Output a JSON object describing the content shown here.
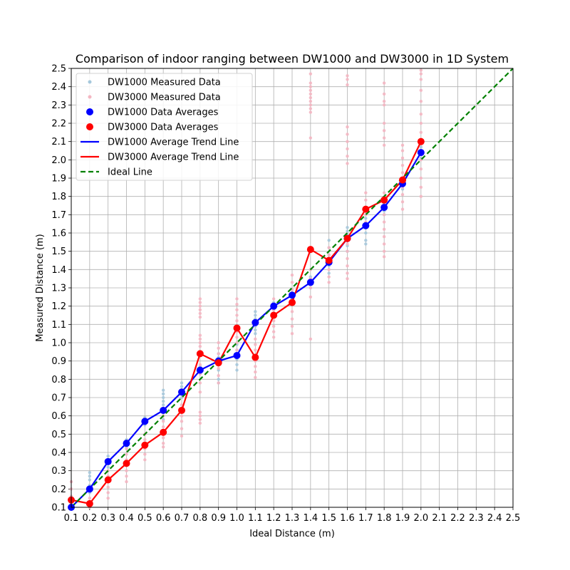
{
  "chart_data": {
    "type": "line",
    "title": "Comparison of indoor ranging between DW1000 and DW3000 in 1D System",
    "xlabel": "Ideal Distance (m)",
    "ylabel": "Measured Distance (m)",
    "xlim": [
      0.1,
      2.5
    ],
    "ylim": [
      0.1,
      2.5
    ],
    "xtick_labels": [
      "0.1",
      "0.2",
      "0.3",
      "0.4",
      "0.5",
      "0.6",
      "0.7",
      "0.8",
      "0.9",
      "1.0",
      "1.1",
      "1.2",
      "1.3",
      "1.4",
      "1.5",
      "1.6",
      "1.7",
      "1.8",
      "1.9",
      "2.0",
      "2.1",
      "2.2",
      "2.3",
      "2.4",
      "2.5"
    ],
    "ytick_labels": [
      "0.1",
      "0.2",
      "0.3",
      "0.4",
      "0.5",
      "0.6",
      "0.7",
      "0.8",
      "0.9",
      "1.0",
      "1.1",
      "1.2",
      "1.3",
      "1.4",
      "1.5",
      "1.6",
      "1.7",
      "1.8",
      "1.9",
      "2.0",
      "2.1",
      "2.2",
      "2.3",
      "2.4",
      "2.5"
    ],
    "grid": true,
    "legend_position": "top-left",
    "legend": [
      {
        "label": "DW1000 Measured Data",
        "kind": "small-dot",
        "color": "#a6c8dc"
      },
      {
        "label": "DW3000 Measured Data",
        "kind": "small-dot",
        "color": "#f4b6c2"
      },
      {
        "label": "DW1000 Data Averages",
        "kind": "big-dot",
        "color": "#0000ff"
      },
      {
        "label": "DW3000 Data Averages",
        "kind": "big-dot",
        "color": "#ff0000"
      },
      {
        "label": "DW1000 Average Trend Line",
        "kind": "line",
        "color": "#0000ff"
      },
      {
        "label": "DW3000 Average Trend Line",
        "kind": "line",
        "color": "#ff0000"
      },
      {
        "label": "Ideal Line",
        "kind": "dashed",
        "color": "#008000"
      }
    ],
    "series": [
      {
        "name": "DW1000 Data Averages",
        "color": "#0000ff",
        "x": [
          0.1,
          0.2,
          0.3,
          0.4,
          0.5,
          0.6,
          0.7,
          0.8,
          0.9,
          1.0,
          1.1,
          1.2,
          1.3,
          1.4,
          1.5,
          1.6,
          1.7,
          1.8,
          1.9,
          2.0
        ],
        "y": [
          0.1,
          0.2,
          0.35,
          0.45,
          0.57,
          0.63,
          0.73,
          0.85,
          0.9,
          0.93,
          1.11,
          1.2,
          1.26,
          1.33,
          1.44,
          1.57,
          1.64,
          1.74,
          1.87,
          2.04
        ]
      },
      {
        "name": "DW3000 Data Averages",
        "color": "#ff0000",
        "x": [
          0.1,
          0.2,
          0.3,
          0.4,
          0.5,
          0.6,
          0.7,
          0.8,
          0.9,
          1.0,
          1.1,
          1.2,
          1.3,
          1.4,
          1.5,
          1.6,
          1.7,
          1.8,
          1.9,
          2.0
        ],
        "y": [
          0.14,
          0.12,
          0.25,
          0.34,
          0.44,
          0.51,
          0.63,
          0.94,
          0.89,
          1.08,
          0.92,
          1.15,
          1.22,
          1.51,
          1.45,
          1.57,
          1.73,
          1.78,
          1.89,
          2.1
        ]
      },
      {
        "name": "Ideal Line",
        "color": "#008000",
        "x": [
          0.1,
          2.5
        ],
        "y": [
          0.1,
          2.5
        ]
      }
    ],
    "measured_data": [
      {
        "name": "DW1000 Measured Data",
        "color": "#a6c8dc",
        "points": [
          {
            "x": 0.1,
            "y": [
              0.09,
              0.1,
              0.11,
              0.12
            ]
          },
          {
            "x": 0.2,
            "y": [
              0.18,
              0.2,
              0.22,
              0.25,
              0.27,
              0.29
            ]
          },
          {
            "x": 0.3,
            "y": [
              0.32,
              0.34,
              0.35,
              0.36,
              0.38
            ]
          },
          {
            "x": 0.4,
            "y": [
              0.43,
              0.44,
              0.45,
              0.46,
              0.47
            ]
          },
          {
            "x": 0.5,
            "y": [
              0.55,
              0.56,
              0.57,
              0.58,
              0.59
            ]
          },
          {
            "x": 0.6,
            "y": [
              0.58,
              0.6,
              0.62,
              0.64,
              0.66,
              0.68,
              0.7,
              0.72,
              0.74
            ]
          },
          {
            "x": 0.7,
            "y": [
              0.7,
              0.72,
              0.73,
              0.74,
              0.76,
              0.78
            ]
          },
          {
            "x": 0.8,
            "y": [
              0.83,
              0.84,
              0.85,
              0.86,
              0.87
            ]
          },
          {
            "x": 0.9,
            "y": [
              0.78,
              0.8,
              0.85,
              0.88,
              0.9,
              0.92,
              0.94
            ]
          },
          {
            "x": 1.0,
            "y": [
              0.85,
              0.88,
              0.91,
              0.93,
              0.96,
              0.99
            ]
          },
          {
            "x": 1.1,
            "y": [
              1.05,
              1.07,
              1.09,
              1.11,
              1.13,
              1.15,
              1.17
            ]
          },
          {
            "x": 1.2,
            "y": [
              1.18,
              1.19,
              1.2,
              1.21,
              1.22
            ]
          },
          {
            "x": 1.3,
            "y": [
              1.23,
              1.25,
              1.26,
              1.27,
              1.29
            ]
          },
          {
            "x": 1.4,
            "y": [
              1.3,
              1.32,
              1.33,
              1.34,
              1.36
            ]
          },
          {
            "x": 1.5,
            "y": [
              1.38,
              1.42,
              1.44,
              1.48,
              1.52,
              1.56
            ]
          },
          {
            "x": 1.6,
            "y": [
              1.5,
              1.53,
              1.57,
              1.59,
              1.61,
              1.63
            ]
          },
          {
            "x": 1.7,
            "y": [
              1.54,
              1.56,
              1.6,
              1.64,
              1.68
            ]
          },
          {
            "x": 1.8,
            "y": [
              1.7,
              1.72,
              1.74,
              1.76,
              1.78
            ]
          },
          {
            "x": 1.9,
            "y": [
              1.84,
              1.86,
              1.87,
              1.88,
              1.9
            ]
          },
          {
            "x": 2.0,
            "y": [
              2.01,
              2.03,
              2.04,
              2.05,
              2.07
            ]
          }
        ]
      },
      {
        "name": "DW3000 Measured Data",
        "color": "#f4b6c2",
        "points": [
          {
            "x": 0.1,
            "y": [
              0.1,
              0.12,
              0.14,
              0.16,
              0.2,
              0.24
            ]
          },
          {
            "x": 0.2,
            "y": [
              0.1,
              0.11,
              0.12,
              0.13,
              0.15
            ]
          },
          {
            "x": 0.3,
            "y": [
              0.15,
              0.18,
              0.21,
              0.24,
              0.27,
              0.3
            ]
          },
          {
            "x": 0.4,
            "y": [
              0.24,
              0.27,
              0.3,
              0.33,
              0.36,
              0.39,
              0.42
            ]
          },
          {
            "x": 0.5,
            "y": [
              0.36,
              0.39,
              0.42,
              0.44,
              0.47,
              0.5
            ]
          },
          {
            "x": 0.6,
            "y": [
              0.43,
              0.45,
              0.48,
              0.51,
              0.54,
              0.57,
              0.6
            ]
          },
          {
            "x": 0.7,
            "y": [
              0.49,
              0.53,
              0.57,
              0.6,
              0.63,
              0.66
            ]
          },
          {
            "x": 0.8,
            "y": [
              0.56,
              0.58,
              0.6,
              0.62,
              0.73,
              0.78,
              0.83,
              0.88,
              0.98,
              1.0,
              1.02,
              1.04,
              1.14,
              1.16,
              1.18,
              1.2,
              1.22,
              1.24
            ]
          },
          {
            "x": 0.9,
            "y": [
              0.78,
              0.82,
              0.86,
              0.9,
              0.94,
              0.97,
              1.0
            ]
          },
          {
            "x": 1.0,
            "y": [
              0.96,
              1.0,
              1.03,
              1.06,
              1.09,
              1.12,
              1.15,
              1.18,
              1.21,
              1.24
            ]
          },
          {
            "x": 1.1,
            "y": [
              0.81,
              0.84,
              0.87,
              0.9,
              0.93,
              0.96,
              0.99,
              1.02
            ]
          },
          {
            "x": 1.2,
            "y": [
              1.03,
              1.06,
              1.09,
              1.12,
              1.15,
              1.18,
              1.21,
              1.24
            ]
          },
          {
            "x": 1.3,
            "y": [
              1.05,
              1.09,
              1.13,
              1.17,
              1.21,
              1.25,
              1.29,
              1.33,
              1.37
            ]
          },
          {
            "x": 1.4,
            "y": [
              1.02,
              1.25,
              1.3,
              1.35,
              1.4,
              2.12,
              2.26,
              2.28,
              2.3,
              2.32,
              2.34,
              2.36,
              2.38,
              2.4,
              2.42,
              2.47
            ]
          },
          {
            "x": 1.5,
            "y": [
              1.33,
              1.36,
              1.4,
              1.44,
              1.48,
              1.52
            ]
          },
          {
            "x": 1.6,
            "y": [
              1.35,
              1.38,
              1.42,
              1.46,
              1.5,
              1.54,
              1.58,
              1.98,
              2.02,
              2.06,
              2.1,
              2.14,
              2.18,
              2.41,
              2.44,
              2.46
            ]
          },
          {
            "x": 1.7,
            "y": [
              1.66,
              1.7,
              1.74,
              1.78,
              1.82
            ]
          },
          {
            "x": 1.8,
            "y": [
              1.47,
              1.5,
              1.54,
              1.58,
              1.62,
              1.66,
              1.7,
              1.74,
              1.78,
              1.82,
              2.08,
              2.12,
              2.16,
              2.2,
              2.3,
              2.32,
              2.36,
              2.42
            ]
          },
          {
            "x": 1.9,
            "y": [
              1.73,
              1.77,
              1.81,
              1.85,
              1.89,
              1.93,
              1.97,
              2.01,
              2.05,
              2.08
            ]
          },
          {
            "x": 2.0,
            "y": [
              1.8,
              1.85,
              1.9,
              1.95,
              2.0,
              2.05,
              2.1,
              2.15,
              2.2,
              2.25,
              2.32,
              2.38,
              2.44,
              2.47,
              2.49
            ]
          }
        ]
      }
    ]
  }
}
